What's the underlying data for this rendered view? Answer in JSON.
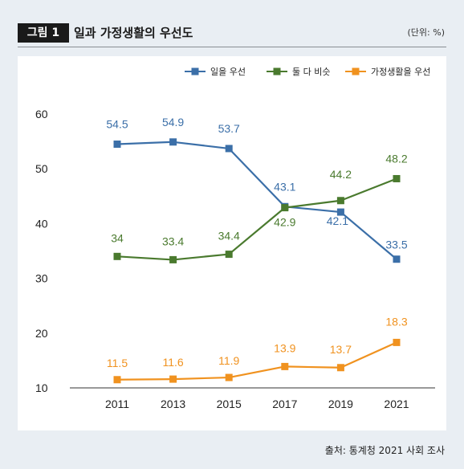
{
  "header": {
    "badge": "그림 1",
    "title": "일과 가정생활의 우선도",
    "unit": "(단위: %)"
  },
  "source": "출처: 통계청 2021 사회 조사",
  "colors": {
    "work": "#3b6fa8",
    "both": "#4a7a2e",
    "family": "#f0921f",
    "panel": "#ffffff",
    "background": "#e9eef3"
  },
  "chart_data": {
    "type": "line",
    "categories": [
      "2011",
      "2013",
      "2015",
      "2017",
      "2019",
      "2021"
    ],
    "ylim": [
      10,
      60
    ],
    "yticks": [
      "10",
      "20",
      "30",
      "40",
      "50",
      "60"
    ],
    "grid": false,
    "legend_position": "top-right",
    "series": [
      {
        "name": "일을 우선",
        "color": "#3b6fa8",
        "values": [
          54.5,
          54.9,
          53.7,
          43.1,
          42.1,
          33.5
        ],
        "labels": [
          "54.5",
          "54.9",
          "53.7",
          "43.1",
          "42.1",
          "33.5"
        ]
      },
      {
        "name": "둘 다 비슷",
        "color": "#4a7a2e",
        "values": [
          34,
          33.4,
          34.4,
          42.9,
          44.2,
          48.2
        ],
        "labels": [
          "34",
          "33.4",
          "34.4",
          "42.9",
          "44.2",
          "48.2"
        ]
      },
      {
        "name": "가정생활을 우선",
        "color": "#f0921f",
        "values": [
          11.5,
          11.6,
          11.9,
          13.9,
          13.7,
          18.3
        ],
        "labels": [
          "11.5",
          "11.6",
          "11.9",
          "13.9",
          "13.7",
          "18.3"
        ]
      }
    ]
  }
}
